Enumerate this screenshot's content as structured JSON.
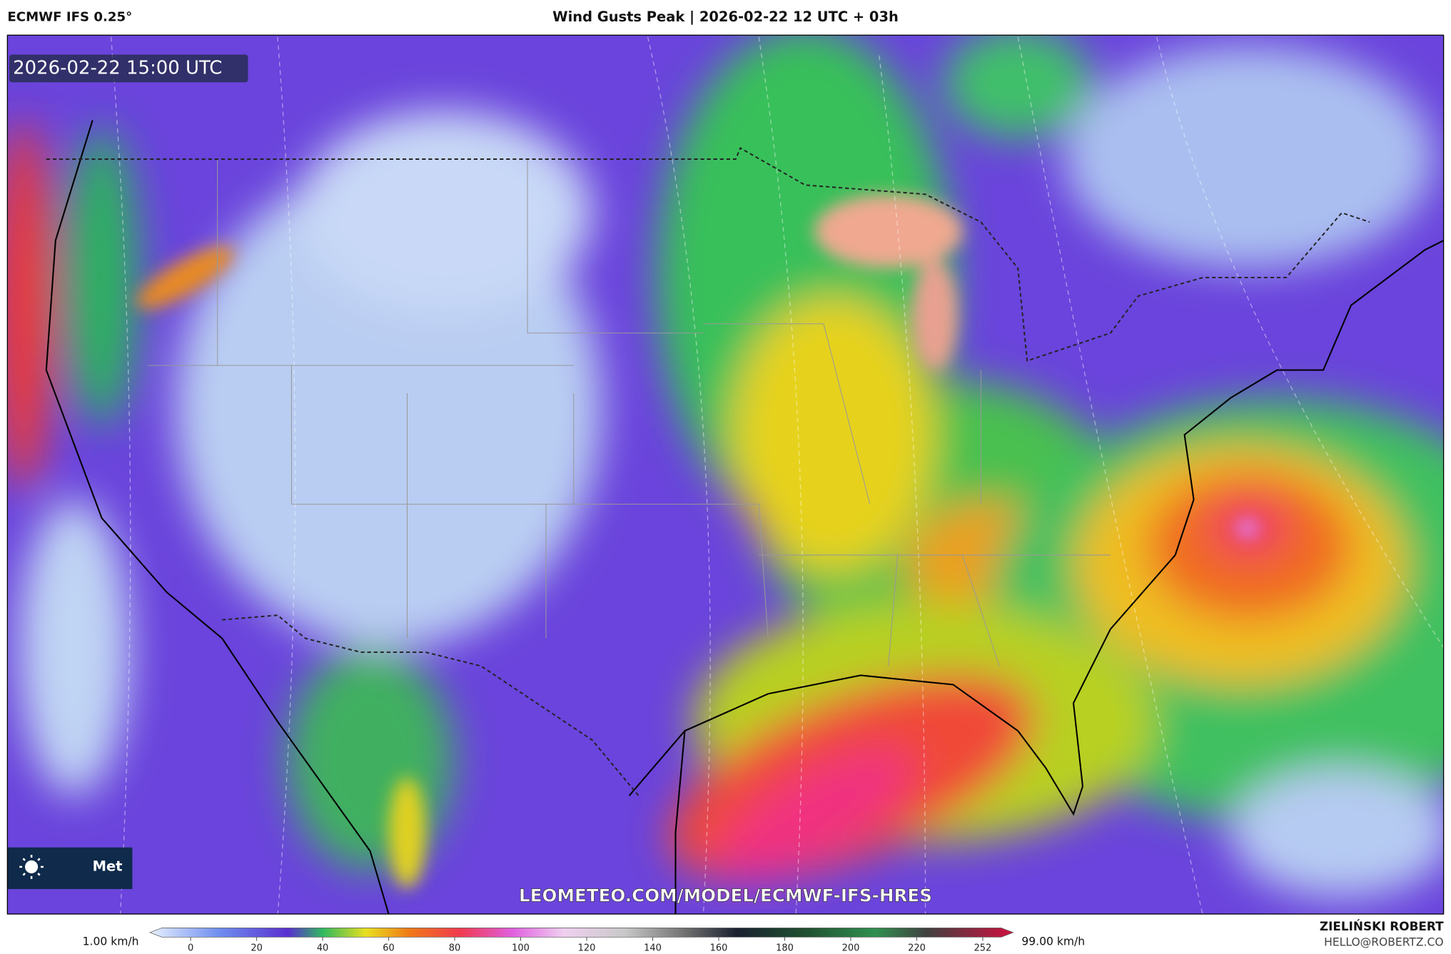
{
  "header": {
    "model": "ECMWF IFS 0.25°",
    "title": "Wind Gusts Peak | 2026-02-22 12 UTC + 03h"
  },
  "map": {
    "timestamp": "2026-02-22 15:00 UTC",
    "watermark": "LEOMETEO.COM/MODEL/ECMWF-IFS-HRES",
    "logo_text": "Met"
  },
  "colorbar": {
    "min_label": "1.00 km/h",
    "max_label": "99.00 km/h",
    "ticks": [
      0,
      20,
      40,
      60,
      80,
      100,
      120,
      140,
      160,
      180,
      200,
      220,
      252
    ]
  },
  "footer": {
    "author": "ZIELIŃSKI ROBERT",
    "contact": "HELLO@ROBERTZ.CO"
  }
}
